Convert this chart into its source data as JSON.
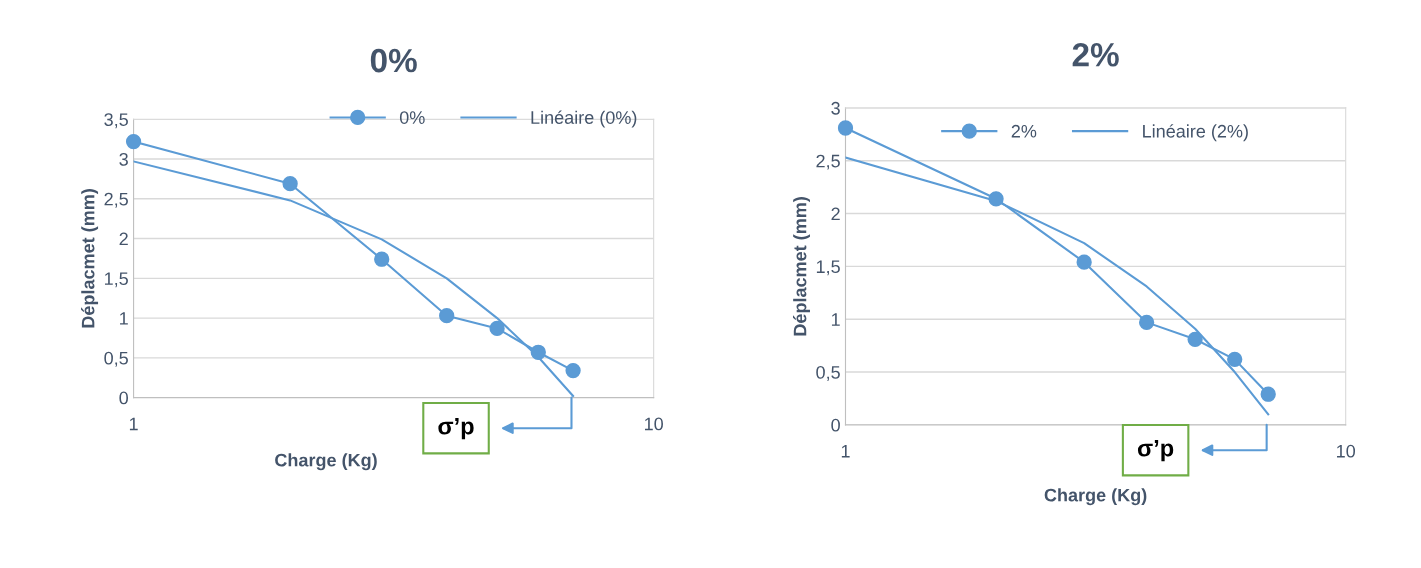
{
  "chart_data": [
    {
      "type": "line",
      "title": "0%",
      "xlabel": "Charge (Kg)",
      "ylabel": "Déplacmet (mm)",
      "log": "x",
      "grid": "y",
      "legend": "top right",
      "marker": "circle",
      "xlim": [
        1,
        10
      ],
      "xticks": [
        1,
        10
      ],
      "ylim": [
        0,
        3.5
      ],
      "yticks": [
        0,
        {
          "value": 0.5,
          "label": "0,5"
        },
        1,
        {
          "value": 1.5,
          "label": "1,5"
        },
        2,
        {
          "value": 2.5,
          "label": "2,5"
        },
        3,
        {
          "value": 3.5,
          "label": "3,5"
        }
      ],
      "series": [
        {
          "name": "0%",
          "color": "#5b9bd5",
          "x": [
            1,
            2,
            3,
            4,
            5,
            6,
            7
          ],
          "values": [
            3.22,
            2.69,
            1.74,
            1.03,
            0.87,
            0.57,
            0.34
          ]
        },
        {
          "name": "Linéaire (0%)",
          "type": "line",
          "marker": "none",
          "color": "#5b9bd5",
          "x": [
            1,
            2,
            3,
            4,
            5,
            6,
            7
          ],
          "values": [
            2.97,
            2.48,
            1.99,
            1.5,
            1.0,
            0.51,
            0.02
          ]
        }
      ],
      "annotations": [
        "σ’p"
      ]
    },
    {
      "type": "line",
      "title": "2%",
      "xlabel": "Charge (Kg)",
      "ylabel": "Déplacmet (mm)",
      "log": "x",
      "grid": "y",
      "legend": "top",
      "marker": "circle",
      "xlim": [
        1,
        10
      ],
      "xticks": [
        1,
        10
      ],
      "ylim": [
        0,
        3
      ],
      "yticks": [
        0,
        {
          "value": 0.5,
          "label": "0,5"
        },
        1,
        {
          "value": 1.5,
          "label": "1,5"
        },
        2,
        {
          "value": 2.5,
          "label": "2,5"
        },
        3
      ],
      "series": [
        {
          "name": "2%",
          "color": "#5b9bd5",
          "x": [
            1,
            2,
            3,
            4,
            5,
            6,
            7
          ],
          "values": [
            2.81,
            2.14,
            1.54,
            0.97,
            0.81,
            0.62,
            0.29
          ]
        },
        {
          "name": "Linéaire (2%)",
          "type": "line",
          "marker": "none",
          "color": "#5b9bd5",
          "x": [
            1,
            2,
            3,
            4,
            5,
            6,
            7
          ],
          "values": [
            2.53,
            2.12,
            1.72,
            1.31,
            0.91,
            0.5,
            0.1
          ]
        }
      ],
      "annotations": [
        "σ’p"
      ]
    }
  ]
}
